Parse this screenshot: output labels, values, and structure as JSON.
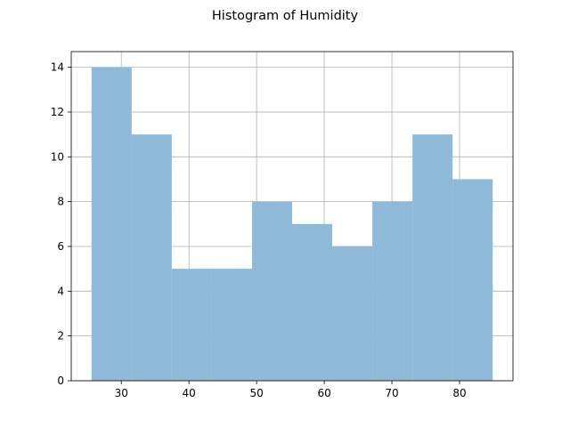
{
  "chart_data": {
    "type": "bar",
    "title": "Histogram of Humidity",
    "xlabel": "",
    "ylabel": "",
    "bin_edges": [
      25.6,
      31.53,
      37.46,
      43.39,
      49.32,
      55.25,
      61.18,
      67.11,
      73.04,
      78.97,
      84.9
    ],
    "values": [
      14,
      11,
      5,
      5,
      8,
      7,
      6,
      8,
      11,
      9
    ],
    "xlim": [
      22.6,
      87.9
    ],
    "ylim": [
      0,
      14.7
    ],
    "xticks": [
      30,
      40,
      50,
      60,
      70,
      80
    ],
    "yticks": [
      0,
      2,
      4,
      6,
      8,
      10,
      12,
      14
    ],
    "grid": true,
    "bar_color": "#8fb9d8"
  }
}
